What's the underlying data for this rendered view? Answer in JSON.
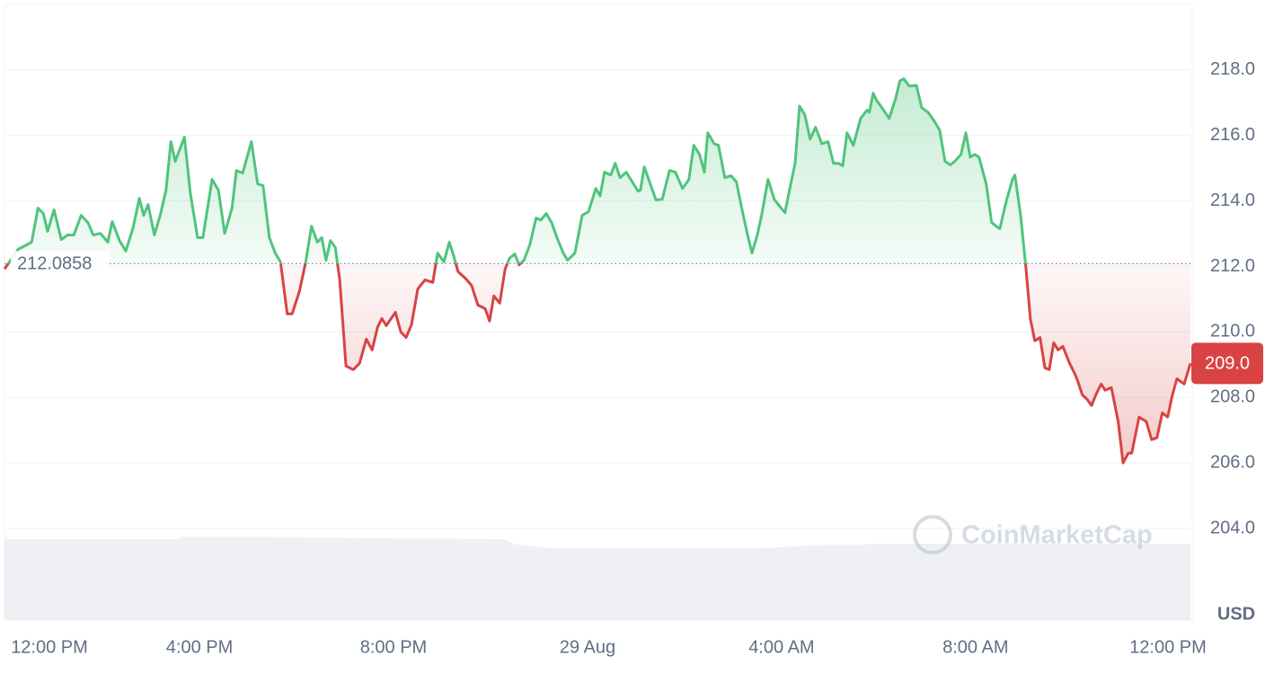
{
  "chart_data": {
    "type": "line",
    "series": [
      {
        "name": "Price",
        "color_up": "#4fc47c",
        "color_down": "#d94343",
        "x": [
          -0.02,
          0.26,
          0.54,
          0.67,
          0.78,
          0.87,
          1.0,
          1.15,
          1.28,
          1.41,
          1.56,
          1.7,
          1.81,
          1.96,
          2.11,
          2.2,
          2.35,
          2.48,
          2.63,
          2.76,
          2.85,
          2.94,
          3.07,
          3.19,
          3.31,
          3.41,
          3.5,
          3.69,
          3.81,
          3.96,
          4.07,
          4.26,
          4.39,
          4.52,
          4.67,
          4.76,
          4.89,
          5.07,
          5.2,
          5.31,
          5.44,
          5.56,
          5.67,
          5.81,
          5.91,
          6.06,
          6.19,
          6.31,
          6.43,
          6.52,
          6.61,
          6.7,
          6.8,
          6.89,
          7.02,
          7.17,
          7.3,
          7.44,
          7.56,
          7.67,
          7.76,
          7.85,
          8.04,
          8.15,
          8.26,
          8.37,
          8.5,
          8.65,
          8.81,
          8.91,
          9.04,
          9.15,
          9.24,
          9.33,
          9.48,
          9.61,
          9.74,
          9.89,
          9.98,
          10.07,
          10.19,
          10.3,
          10.39,
          10.5,
          10.59,
          10.69,
          10.81,
          10.94,
          11.04,
          11.15,
          11.26,
          11.37,
          11.5,
          11.59,
          11.74,
          11.89,
          12.02,
          12.17,
          12.26,
          12.35,
          12.48,
          12.57,
          12.67,
          12.8,
          12.89,
          13.04,
          13.09,
          13.17,
          13.26,
          13.41,
          13.54,
          13.69,
          13.81,
          13.96,
          14.09,
          14.19,
          14.31,
          14.41,
          14.48,
          14.61,
          14.7,
          14.83,
          14.96,
          15.07,
          15.17,
          15.3,
          15.39,
          15.5,
          15.59,
          15.72,
          15.85,
          15.96,
          16.07,
          16.19,
          16.28,
          16.37,
          16.48,
          16.59,
          16.7,
          16.83,
          16.96,
          17.07,
          17.17,
          17.26,
          17.35,
          17.48,
          17.63,
          17.76,
          17.81,
          17.89,
          17.96,
          18.07,
          18.22,
          18.35,
          18.44,
          18.52,
          18.63,
          18.78,
          18.89,
          19.02,
          19.15,
          19.26,
          19.37,
          19.48,
          19.57,
          19.7,
          19.8,
          19.89,
          19.98,
          20.07,
          20.22,
          20.33,
          20.5,
          20.63,
          20.76,
          20.81,
          20.93,
          21.04,
          21.13,
          21.22,
          21.33,
          21.43,
          21.52,
          21.61,
          21.7,
          21.8,
          21.93,
          22.06,
          22.11,
          22.2,
          22.3,
          22.39,
          22.48,
          22.59,
          22.67,
          22.8,
          22.94,
          23.04,
          23.15,
          23.22,
          23.37,
          23.52,
          23.63,
          23.74,
          23.85,
          23.96,
          24.06,
          24.15,
          24.3,
          24.43
        ],
        "values": [
          211.92,
          212.52,
          212.74,
          213.78,
          213.62,
          213.07,
          213.73,
          212.82,
          212.96,
          212.96,
          213.56,
          213.34,
          212.96,
          213.01,
          212.74,
          213.37,
          212.79,
          212.47,
          213.18,
          214.08,
          213.56,
          213.89,
          212.96,
          213.56,
          214.33,
          215.81,
          215.21,
          215.95,
          214.25,
          212.88,
          212.88,
          214.66,
          214.33,
          213.01,
          213.78,
          214.93,
          214.85,
          215.81,
          214.52,
          214.47,
          212.88,
          212.41,
          212.14,
          210.55,
          210.55,
          211.23,
          212.14,
          213.23,
          212.74,
          212.88,
          212.19,
          212.79,
          212.58,
          211.59,
          208.96,
          208.85,
          209.04,
          209.78,
          209.45,
          210.14,
          210.41,
          210.19,
          210.6,
          210.0,
          209.83,
          210.22,
          211.31,
          211.59,
          211.51,
          212.41,
          212.14,
          212.74,
          212.33,
          211.84,
          211.64,
          211.42,
          210.82,
          210.71,
          210.33,
          211.1,
          210.88,
          211.92,
          212.25,
          212.38,
          212.05,
          212.19,
          212.66,
          213.48,
          213.42,
          213.62,
          213.34,
          212.88,
          212.41,
          212.19,
          212.41,
          213.56,
          213.67,
          214.38,
          214.16,
          214.88,
          214.79,
          215.15,
          214.71,
          214.88,
          214.66,
          214.3,
          214.33,
          215.04,
          214.66,
          214.03,
          214.05,
          214.93,
          214.88,
          214.38,
          214.66,
          215.7,
          215.42,
          214.88,
          216.08,
          215.75,
          215.7,
          214.71,
          214.77,
          214.58,
          213.84,
          212.96,
          212.41,
          212.96,
          213.56,
          214.66,
          214.05,
          213.84,
          213.64,
          214.52,
          215.15,
          216.9,
          216.63,
          215.89,
          216.25,
          215.75,
          215.81,
          215.15,
          215.15,
          215.07,
          216.08,
          215.7,
          216.52,
          216.77,
          216.71,
          217.29,
          217.07,
          216.85,
          216.52,
          217.12,
          217.67,
          217.73,
          217.51,
          217.53,
          216.85,
          216.71,
          216.44,
          216.16,
          215.21,
          215.1,
          215.21,
          215.42,
          216.08,
          215.34,
          215.42,
          215.34,
          214.52,
          213.34,
          213.15,
          213.97,
          214.66,
          214.79,
          213.56,
          211.92,
          210.41,
          209.73,
          209.83,
          208.9,
          208.85,
          209.67,
          209.45,
          209.56,
          209.07,
          208.68,
          208.49,
          208.08,
          207.94,
          207.75,
          208.08,
          208.41,
          208.22,
          208.3,
          207.26,
          206.0,
          206.3,
          206.3,
          207.4,
          207.26,
          206.71,
          206.77,
          207.53,
          207.4,
          208.08,
          208.57,
          208.41,
          209.04
        ]
      }
    ],
    "baseline": 212.0858,
    "last_price_label": "209.0",
    "xlim": [
      -0.02,
      24.43
    ],
    "xticks": [
      {
        "value": 0,
        "label": "12:00 PM"
      },
      {
        "value": 4,
        "label": "4:00 PM"
      },
      {
        "value": 8,
        "label": "8:00 PM"
      },
      {
        "value": 12,
        "label": "29 Aug"
      },
      {
        "value": 16,
        "label": "4:00 AM"
      },
      {
        "value": 20,
        "label": "8:00 AM"
      },
      {
        "value": 24,
        "label": "12:00 PM"
      }
    ],
    "ylim": [
      201.2,
      220.0
    ],
    "yticks": [
      {
        "value": 204,
        "label": "204.0"
      },
      {
        "value": 206,
        "label": "206.0"
      },
      {
        "value": 208,
        "label": "208.0"
      },
      {
        "value": 210,
        "label": "210.0"
      },
      {
        "value": 212,
        "label": "212.0"
      },
      {
        "value": 214,
        "label": "214.0"
      },
      {
        "value": 216,
        "label": "216.0"
      },
      {
        "value": 218,
        "label": "218.0"
      }
    ],
    "grid": true,
    "currency": "USD",
    "watermark": "CoinMarketCap"
  }
}
